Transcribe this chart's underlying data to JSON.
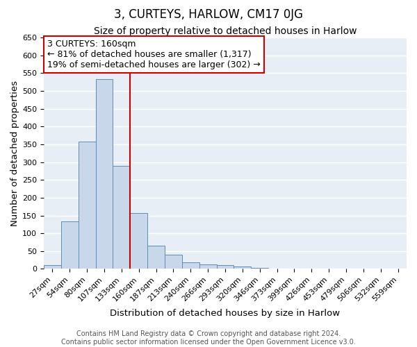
{
  "title": "3, CURTEYS, HARLOW, CM17 0JG",
  "subtitle": "Size of property relative to detached houses in Harlow",
  "xlabel": "Distribution of detached houses by size in Harlow",
  "ylabel": "Number of detached properties",
  "bar_labels": [
    "27sqm",
    "54sqm",
    "80sqm",
    "107sqm",
    "133sqm",
    "160sqm",
    "187sqm",
    "213sqm",
    "240sqm",
    "266sqm",
    "293sqm",
    "320sqm",
    "346sqm",
    "373sqm",
    "399sqm",
    "426sqm",
    "453sqm",
    "479sqm",
    "506sqm",
    "532sqm",
    "559sqm"
  ],
  "bar_values": [
    10,
    133,
    358,
    533,
    290,
    157,
    65,
    40,
    18,
    13,
    10,
    7,
    2,
    0,
    0,
    0,
    1,
    0,
    0,
    0,
    1
  ],
  "bar_color": "#c8d8ea",
  "bar_edge_color": "#5b8db8",
  "vline_x": 5,
  "annotation_title": "3 CURTEYS: 160sqm",
  "annotation_line1": "← 81% of detached houses are smaller (1,317)",
  "annotation_line2": "19% of semi-detached houses are larger (302) →",
  "vline_color": "#cc0000",
  "box_edge_color": "#cc0000",
  "ylim": [
    0,
    650
  ],
  "yticks": [
    0,
    50,
    100,
    150,
    200,
    250,
    300,
    350,
    400,
    450,
    500,
    550,
    600,
    650
  ],
  "footer_line1": "Contains HM Land Registry data © Crown copyright and database right 2024.",
  "footer_line2": "Contains public sector information licensed under the Open Government Licence v3.0.",
  "background_color": "#ffffff",
  "plot_background": "#e8eef5",
  "grid_color": "#ffffff",
  "title_fontsize": 12,
  "subtitle_fontsize": 10,
  "axis_label_fontsize": 9.5,
  "tick_fontsize": 8,
  "footer_fontsize": 7,
  "annotation_fontsize": 9
}
